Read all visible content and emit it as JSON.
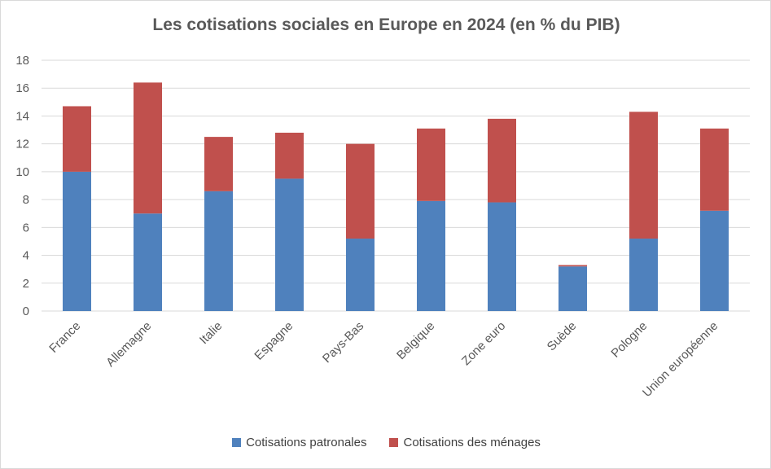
{
  "chart_data": {
    "type": "bar",
    "stacked": true,
    "title": "Les cotisations sociales en Europe en 2024 (en % du PIB)",
    "categories": [
      "France",
      "Allemagne",
      "Italie",
      "Espagne",
      "Pays-Bas",
      "Belgique",
      "Zone euro",
      "Suède",
      "Pologne",
      "Union européenne"
    ],
    "series": [
      {
        "name": "Cotisations patronales",
        "color": "#4f81bd",
        "values": [
          10.0,
          7.0,
          8.6,
          9.5,
          5.2,
          7.9,
          7.8,
          3.2,
          5.2,
          7.2
        ]
      },
      {
        "name": "Cotisations des ménages",
        "color": "#c0504d",
        "values": [
          4.7,
          9.4,
          3.9,
          3.3,
          6.8,
          5.2,
          6.0,
          0.1,
          9.1,
          5.9
        ]
      }
    ],
    "ylim": [
      0,
      18
    ],
    "yticks": [
      0,
      2,
      4,
      6,
      8,
      10,
      12,
      14,
      16,
      18
    ],
    "xlabel": "",
    "ylabel": "",
    "grid": true,
    "legend": "bottom"
  }
}
